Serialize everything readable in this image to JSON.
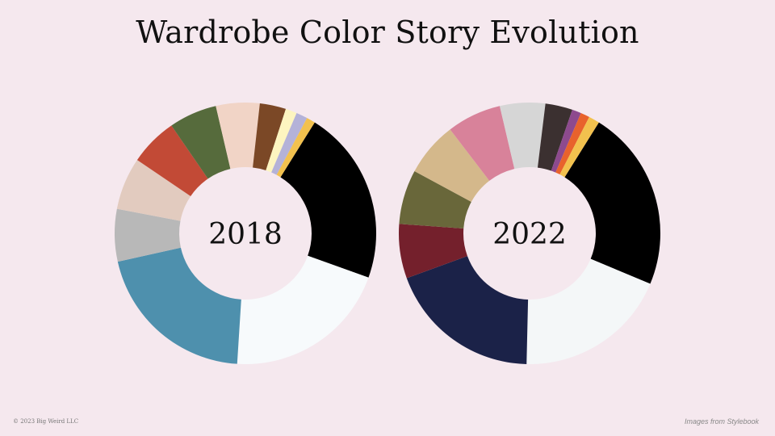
{
  "title": "Wardrobe Color Story Evolution",
  "footer": {
    "copyright": "© 2023 Big Weird LLC",
    "credit": "Images from Stylebook"
  },
  "chart_data": [
    {
      "type": "donut",
      "center_label": "2018",
      "slices": [
        {
          "color": "#000000",
          "value": 20
        },
        {
          "color": "#f7fafc",
          "value": 19
        },
        {
          "color": "#4e90ad",
          "value": 19
        },
        {
          "color": "#b8b8b8",
          "value": 6
        },
        {
          "color": "#e2cbbf",
          "value": 6
        },
        {
          "color": "#c24a36",
          "value": 5.5
        },
        {
          "color": "#566b3c",
          "value": 5.5
        },
        {
          "color": "#f1d4c6",
          "value": 5
        },
        {
          "color": "#7b4826",
          "value": 3
        },
        {
          "color": "#fdf5c0",
          "value": 1.3
        },
        {
          "color": "#b4b2d8",
          "value": 1.3
        },
        {
          "color": "#f2c14e",
          "value": 1
        }
      ]
    },
    {
      "type": "donut",
      "center_label": "2022",
      "slices": [
        {
          "color": "#000000",
          "value": 20
        },
        {
          "color": "#f4f7f8",
          "value": 17
        },
        {
          "color": "#1b2248",
          "value": 17
        },
        {
          "color": "#74202c",
          "value": 6
        },
        {
          "color": "#69673a",
          "value": 6
        },
        {
          "color": "#d4b88b",
          "value": 6
        },
        {
          "color": "#d8829a",
          "value": 6
        },
        {
          "color": "#d6d6d6",
          "value": 5
        },
        {
          "color": "#3b3030",
          "value": 3
        },
        {
          "color": "#8d4a8e",
          "value": 1
        },
        {
          "color": "#e8622c",
          "value": 1
        },
        {
          "color": "#f2c14e",
          "value": 1.2
        }
      ]
    }
  ]
}
